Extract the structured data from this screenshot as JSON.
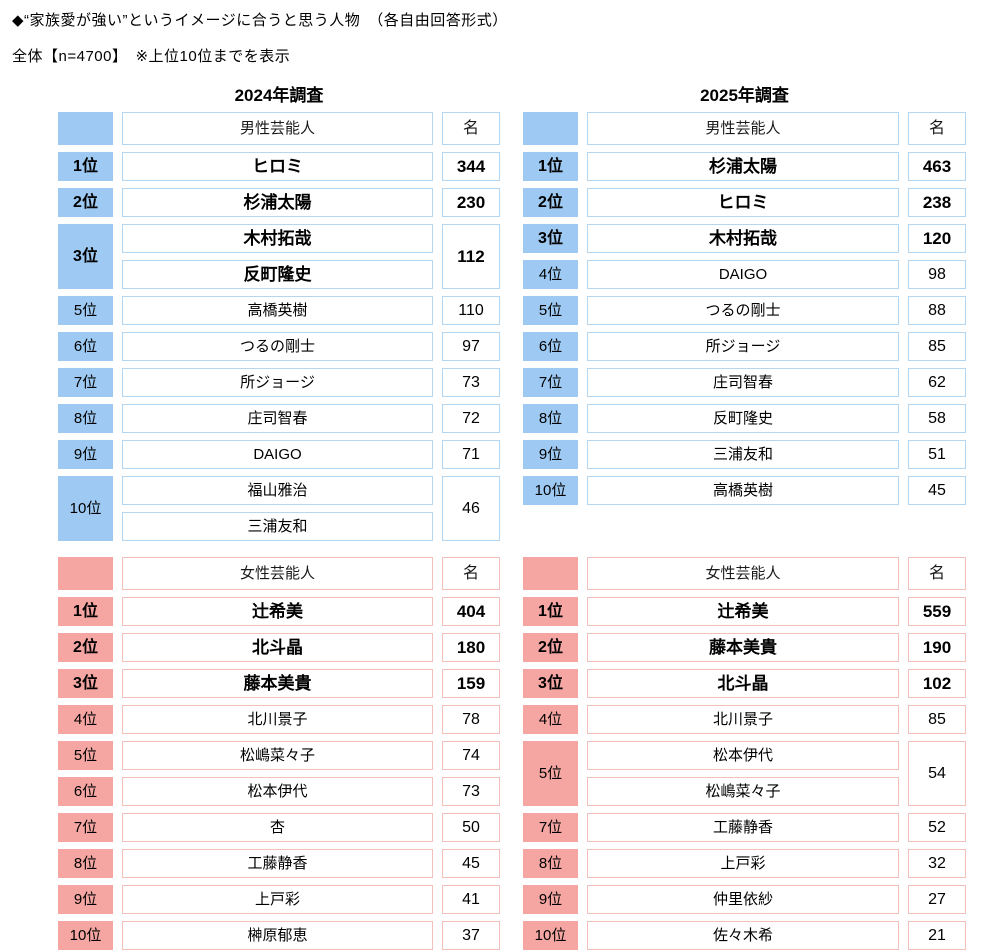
{
  "title": "◆“家族愛が強い”というイメージに合うと思う人物　（各自由回答形式）",
  "subtitle": "全体【n=4700】　※上位10位までを表示",
  "year_labels": [
    "2024年調査",
    "2025年調査"
  ],
  "colors": {
    "male_fill": "#9DC9F2",
    "male_border": "#B3D6F2",
    "female_fill": "#F5A6A2",
    "female_border": "#F3BFBB",
    "text": "#000000"
  },
  "chart_data": [
    {
      "id": "table-2024-male",
      "type": "table",
      "survey": "2024年調査",
      "category": "男性芸能人",
      "unit_header": "名",
      "theme": "male",
      "rows": [
        {
          "rank": "1位",
          "names": [
            "ヒロミ"
          ],
          "value": 344,
          "bold": true
        },
        {
          "rank": "2位",
          "names": [
            "杉浦太陽"
          ],
          "value": 230,
          "bold": true
        },
        {
          "rank": "3位",
          "names": [
            "木村拓哉",
            "反町隆史"
          ],
          "value": 112,
          "bold": true
        },
        {
          "rank": "5位",
          "names": [
            "高橋英樹"
          ],
          "value": 110,
          "bold": false
        },
        {
          "rank": "6位",
          "names": [
            "つるの剛士"
          ],
          "value": 97,
          "bold": false
        },
        {
          "rank": "7位",
          "names": [
            "所ジョージ"
          ],
          "value": 73,
          "bold": false
        },
        {
          "rank": "8位",
          "names": [
            "庄司智春"
          ],
          "value": 72,
          "bold": false
        },
        {
          "rank": "9位",
          "names": [
            "DAIGO"
          ],
          "value": 71,
          "bold": false
        },
        {
          "rank": "10位",
          "names": [
            "福山雅治",
            "三浦友和"
          ],
          "value": 46,
          "bold": false
        }
      ]
    },
    {
      "id": "table-2025-male",
      "type": "table",
      "survey": "2025年調査",
      "category": "男性芸能人",
      "unit_header": "名",
      "theme": "male",
      "rows": [
        {
          "rank": "1位",
          "names": [
            "杉浦太陽"
          ],
          "value": 463,
          "bold": true
        },
        {
          "rank": "2位",
          "names": [
            "ヒロミ"
          ],
          "value": 238,
          "bold": true
        },
        {
          "rank": "3位",
          "names": [
            "木村拓哉"
          ],
          "value": 120,
          "bold": true
        },
        {
          "rank": "4位",
          "names": [
            "DAIGO"
          ],
          "value": 98,
          "bold": false
        },
        {
          "rank": "5位",
          "names": [
            "つるの剛士"
          ],
          "value": 88,
          "bold": false
        },
        {
          "rank": "6位",
          "names": [
            "所ジョージ"
          ],
          "value": 85,
          "bold": false
        },
        {
          "rank": "7位",
          "names": [
            "庄司智春"
          ],
          "value": 62,
          "bold": false
        },
        {
          "rank": "8位",
          "names": [
            "反町隆史"
          ],
          "value": 58,
          "bold": false
        },
        {
          "rank": "9位",
          "names": [
            "三浦友和"
          ],
          "value": 51,
          "bold": false
        },
        {
          "rank": "10位",
          "names": [
            "高橋英樹"
          ],
          "value": 45,
          "bold": false
        }
      ]
    },
    {
      "id": "table-2024-female",
      "type": "table",
      "survey": "2024年調査",
      "category": "女性芸能人",
      "unit_header": "名",
      "theme": "female",
      "rows": [
        {
          "rank": "1位",
          "names": [
            "辻希美"
          ],
          "value": 404,
          "bold": true
        },
        {
          "rank": "2位",
          "names": [
            "北斗晶"
          ],
          "value": 180,
          "bold": true
        },
        {
          "rank": "3位",
          "names": [
            "藤本美貴"
          ],
          "value": 159,
          "bold": true
        },
        {
          "rank": "4位",
          "names": [
            "北川景子"
          ],
          "value": 78,
          "bold": false
        },
        {
          "rank": "5位",
          "names": [
            "松嶋菜々子"
          ],
          "value": 74,
          "bold": false
        },
        {
          "rank": "6位",
          "names": [
            "松本伊代"
          ],
          "value": 73,
          "bold": false
        },
        {
          "rank": "7位",
          "names": [
            "杏"
          ],
          "value": 50,
          "bold": false
        },
        {
          "rank": "8位",
          "names": [
            "工藤静香"
          ],
          "value": 45,
          "bold": false
        },
        {
          "rank": "9位",
          "names": [
            "上戸彩"
          ],
          "value": 41,
          "bold": false
        },
        {
          "rank": "10位",
          "names": [
            "榊原郁恵"
          ],
          "value": 37,
          "bold": false
        }
      ]
    },
    {
      "id": "table-2025-female",
      "type": "table",
      "survey": "2025年調査",
      "category": "女性芸能人",
      "unit_header": "名",
      "theme": "female",
      "rows": [
        {
          "rank": "1位",
          "names": [
            "辻希美"
          ],
          "value": 559,
          "bold": true
        },
        {
          "rank": "2位",
          "names": [
            "藤本美貴"
          ],
          "value": 190,
          "bold": true
        },
        {
          "rank": "3位",
          "names": [
            "北斗晶"
          ],
          "value": 102,
          "bold": true
        },
        {
          "rank": "4位",
          "names": [
            "北川景子"
          ],
          "value": 85,
          "bold": false
        },
        {
          "rank": "5位",
          "names": [
            "松本伊代",
            "松嶋菜々子"
          ],
          "value": 54,
          "bold": false
        },
        {
          "rank": "7位",
          "names": [
            "工藤静香"
          ],
          "value": 52,
          "bold": false
        },
        {
          "rank": "8位",
          "names": [
            "上戸彩"
          ],
          "value": 32,
          "bold": false
        },
        {
          "rank": "9位",
          "names": [
            "仲里依紗"
          ],
          "value": 27,
          "bold": false
        },
        {
          "rank": "10位",
          "names": [
            "佐々木希"
          ],
          "value": 21,
          "bold": false
        }
      ]
    }
  ]
}
